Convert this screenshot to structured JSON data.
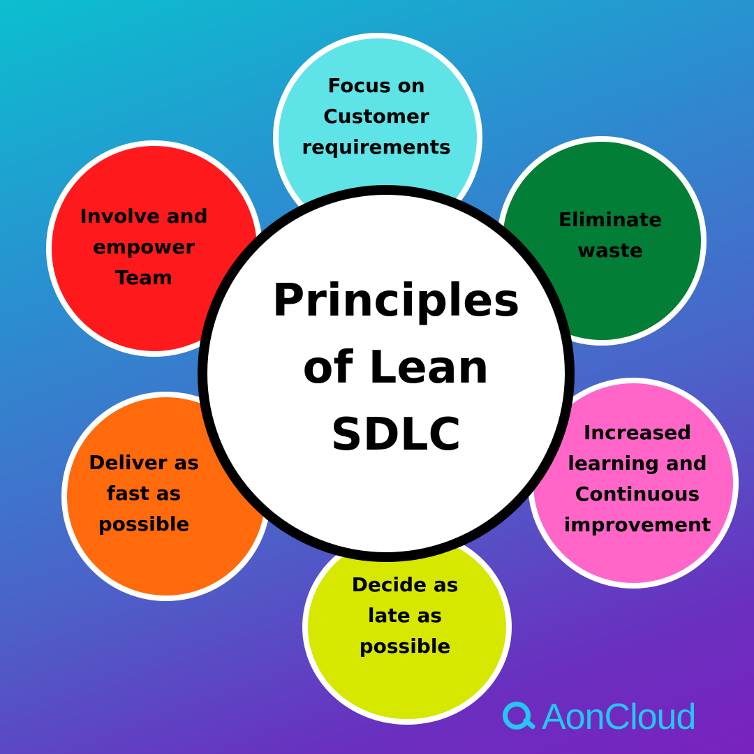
{
  "center": {
    "lines": [
      "Principles",
      "of Lean",
      "SDLC"
    ]
  },
  "principles": [
    {
      "lines": [
        "Focus on",
        "Customer",
        "requirements"
      ],
      "color": "#5ee3e6"
    },
    {
      "lines": [
        "Eliminate",
        "waste"
      ],
      "color": "#037e36"
    },
    {
      "lines": [
        "Increased",
        "learning and",
        "Continuous",
        "improvement"
      ],
      "color": "#ff66c8"
    },
    {
      "lines": [
        "Decide as",
        "late as",
        "possible"
      ],
      "color": "#d6e700"
    },
    {
      "lines": [
        "Deliver as",
        "fast as",
        "possible"
      ],
      "color": "#ff6a0d"
    },
    {
      "lines": [
        "Involve and",
        "empower",
        "Team"
      ],
      "color": "#fe1a1c"
    }
  ],
  "logo": {
    "text": "AonCloud",
    "icon": "magnifier-icon",
    "color": "#26c6f2"
  }
}
